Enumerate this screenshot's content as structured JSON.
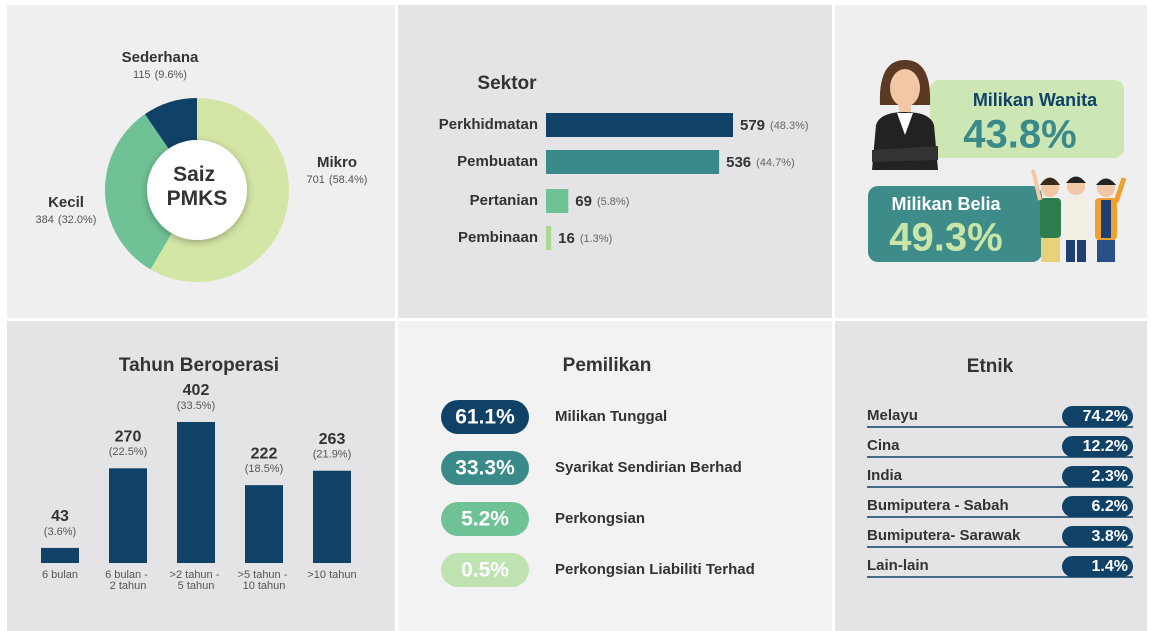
{
  "chart_data": [
    {
      "type": "pie",
      "title": "Saiz\nPMKS",
      "categories": [
        "Mikro",
        "Kecil",
        "Sederhana"
      ],
      "values": [
        701,
        384,
        115
      ],
      "percent_labels": [
        "(58.4%)",
        "(32.0%)",
        "(9.6%)"
      ],
      "colors": [
        "#d4e6a5",
        "#6fc295",
        "#0f4266"
      ]
    },
    {
      "type": "hbar",
      "title": "Sektor",
      "categories": [
        "Perkhidmatan",
        "Pembuatan",
        "Pertanian",
        "Pembinaan"
      ],
      "values": [
        579,
        536,
        69,
        16
      ],
      "percent_labels": [
        "(48.3%)",
        "(44.7%)",
        "(5.8%)",
        "(1.3%)"
      ],
      "colors": [
        "#0f4266",
        "#3a8a8a",
        "#6fc295",
        "#a8d990"
      ]
    },
    {
      "type": "bar",
      "title": "Tahun Beroperasi",
      "categories": [
        "6 bulan",
        "6 bulan -\n2 tahun",
        ">2 tahun -\n5 tahun",
        ">5 tahun -\n10 tahun",
        ">10 tahun"
      ],
      "values": [
        43,
        270,
        402,
        222,
        263
      ],
      "percent_labels": [
        "(3.6%)",
        "(22.5%)",
        "(33.5%)",
        "(18.5%)",
        "(21.9%)"
      ],
      "color": "#0f4266"
    }
  ],
  "highlights": [
    {
      "label": "Milikan Wanita",
      "value": "43.8%"
    },
    {
      "label": "Milikan Belia",
      "value": "49.3%"
    }
  ],
  "ownership": {
    "title": "Pemilikan",
    "items": [
      {
        "value": "61.1%",
        "label": "Milikan Tunggal",
        "color": "#0f4266"
      },
      {
        "value": "33.3%",
        "label": "Syarikat Sendirian Berhad",
        "color": "#3a8a8a"
      },
      {
        "value": "5.2%",
        "label": "Perkongsian",
        "color": "#6fc295"
      },
      {
        "value": "0.5%",
        "label": "Perkongsian Liabiliti Terhad",
        "color": "#bfe3b0"
      }
    ]
  },
  "ethnicity": {
    "title": "Etnik",
    "items": [
      {
        "label": "Melayu",
        "value": "74.2%"
      },
      {
        "label": "Cina",
        "value": "12.2%"
      },
      {
        "label": "India",
        "value": "2.3%"
      },
      {
        "label": "Bumiputera - Sabah",
        "value": "6.2%"
      },
      {
        "label": "Bumiputera- Sarawak",
        "value": "3.8%"
      },
      {
        "label": "Lain-lain",
        "value": "1.4%"
      }
    ]
  }
}
